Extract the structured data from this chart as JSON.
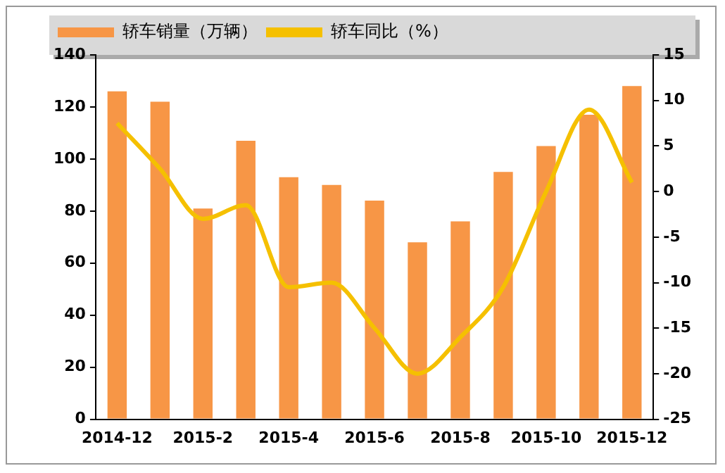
{
  "chart_data": {
    "type": "bar",
    "categories": [
      "2014-12",
      null,
      "2015-2",
      null,
      "2015-4",
      null,
      "2015-6",
      null,
      "2015-8",
      null,
      "2015-10",
      null,
      "2015-12"
    ],
    "series": [
      {
        "name": "轿车销量（万辆）",
        "color": "#f79646",
        "values": [
          126,
          122,
          81,
          107,
          93,
          90,
          84,
          68,
          76,
          95,
          105,
          117,
          128
        ]
      },
      {
        "name": "轿车同比（%）",
        "type": "line",
        "axis": "y2",
        "color": "#f5c000",
        "values": [
          7.5,
          2.5,
          -3,
          -1.5,
          -10.5,
          -10,
          -15,
          -20,
          -16,
          -10.5,
          0,
          9,
          1
        ]
      }
    ],
    "ylim": [
      0,
      140
    ],
    "yticks": [
      0,
      20,
      40,
      60,
      80,
      100,
      120,
      140
    ],
    "y2lim": [
      -25,
      15
    ],
    "y2ticks": [
      -25,
      -20,
      -15,
      -10,
      -5,
      0,
      5,
      10,
      15
    ],
    "grid": false,
    "legend": "top left",
    "marker": "none"
  }
}
